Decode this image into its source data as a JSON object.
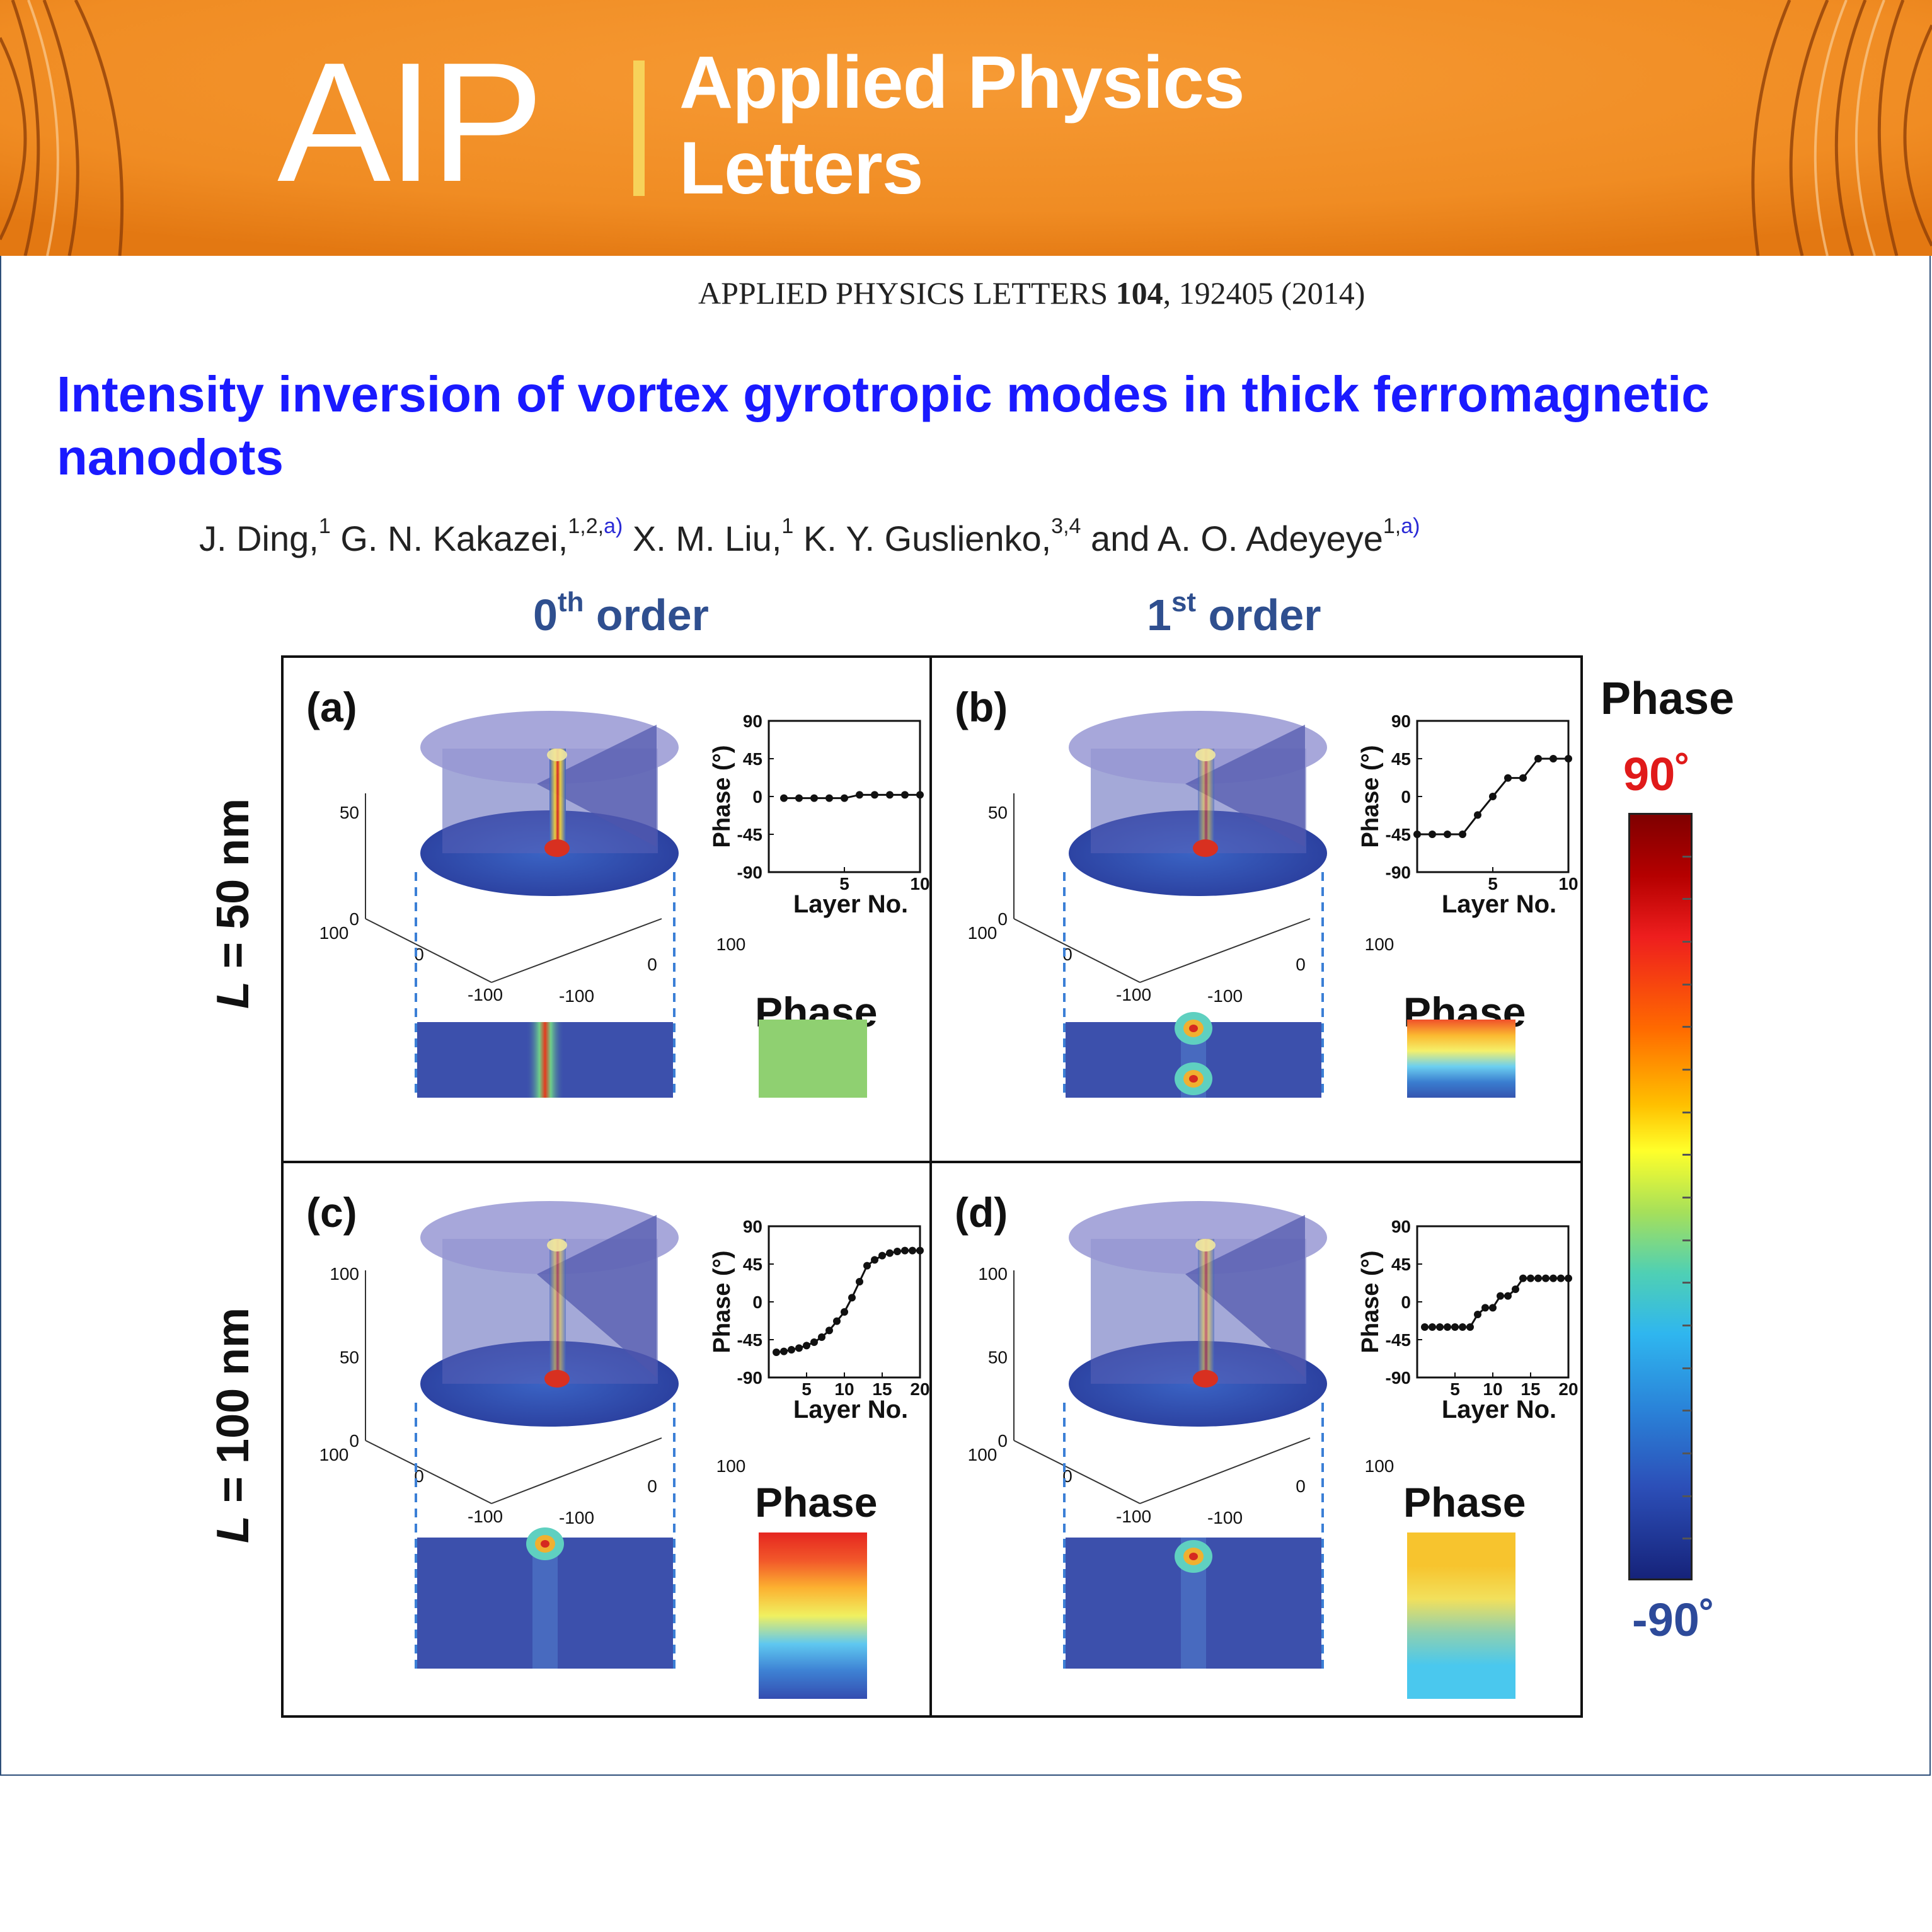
{
  "banner": {
    "logo": "AIP",
    "title_line1": "Applied Physics",
    "title_line2": "Letters",
    "background_color": "#f08c23"
  },
  "citation": {
    "journal": "APPLIED PHYSICS LETTERS",
    "volume": "104",
    "rest": ", 192405 (2014)"
  },
  "paper": {
    "title": "Intensity inversion of vortex gyrotropic modes in thick ferromagnetic nanodots",
    "authors": [
      {
        "name": "J. Ding,",
        "sup": "1",
        "aff": ""
      },
      {
        "name": " G. N. Kakazei,",
        "sup": "1,2,",
        "aff": "a)"
      },
      {
        "name": " X. M. Liu,",
        "sup": "1",
        "aff": ""
      },
      {
        "name": " K. Y. Guslienko,",
        "sup": "3,4",
        "aff": ""
      },
      {
        "name": " and A. O. Adeyeye",
        "sup": "1,",
        "aff": "a)"
      }
    ]
  },
  "figure": {
    "columns": [
      {
        "main": "0",
        "sup": "th",
        "rest": " order"
      },
      {
        "main": "1",
        "sup": "st",
        "rest": " order"
      }
    ],
    "rows": [
      {
        "var": "L",
        "rest": " = 50 nm"
      },
      {
        "var": "L",
        "rest": " = 100 nm"
      }
    ],
    "phase_word": "Phase",
    "inset_ylabel": "Phase (°)",
    "inset_xlabel": "Layer No.",
    "panels": [
      {
        "letter": "(a)",
        "z_ticks": [
          "50",
          "0"
        ],
        "xy_ticks": [
          "100",
          "0",
          "-100",
          "-100",
          "0",
          "100"
        ],
        "swatch_colors": [
          "#8fd071"
        ],
        "chart_data": {
          "type": "line",
          "xlim": [
            0,
            10
          ],
          "ylim": [
            -90,
            90
          ],
          "x_ticks": [
            "5",
            "10"
          ],
          "y_ticks": [
            "90",
            "45",
            "0",
            "-45",
            "-90"
          ],
          "x": [
            1,
            2,
            3,
            4,
            5,
            6,
            7,
            8,
            9,
            10
          ],
          "y": [
            -2,
            -2,
            -2,
            -2,
            -2,
            2,
            2,
            2,
            2,
            2
          ]
        }
      },
      {
        "letter": "(b)",
        "z_ticks": [
          "50",
          "0"
        ],
        "xy_ticks": [
          "100",
          "0",
          "-100",
          "-100",
          "0",
          "100"
        ],
        "swatch_colors": [
          "#f0502a",
          "#fbb830",
          "#f5f06a",
          "#6ccff0",
          "#3a7ed0",
          "#3555b0"
        ],
        "chart_data": {
          "type": "line",
          "xlim": [
            0,
            10
          ],
          "ylim": [
            -90,
            90
          ],
          "x_ticks": [
            "5",
            "10"
          ],
          "y_ticks": [
            "90",
            "45",
            "0",
            "-45",
            "-90"
          ],
          "x": [
            0,
            1,
            2,
            3,
            4,
            5,
            6,
            7,
            8,
            9,
            10
          ],
          "y": [
            -45,
            -45,
            -45,
            -45,
            -22,
            0,
            22,
            22,
            45,
            45,
            45
          ]
        }
      },
      {
        "letter": "(c)",
        "z_ticks": [
          "100",
          "50",
          "0"
        ],
        "xy_ticks": [
          "100",
          "0",
          "-100",
          "-100",
          "0",
          "100"
        ],
        "swatch_colors": [
          "#e52620",
          "#f2582a",
          "#fcb030",
          "#f0f060",
          "#5fc8f0",
          "#3e82d4",
          "#344db0"
        ],
        "chart_data": {
          "type": "line",
          "xlim": [
            0,
            20
          ],
          "ylim": [
            -90,
            90
          ],
          "x_ticks": [
            "5",
            "10",
            "15",
            "20"
          ],
          "y_ticks": [
            "90",
            "45",
            "0",
            "-45",
            "-90"
          ],
          "x": [
            1,
            2,
            3,
            4,
            5,
            6,
            7,
            8,
            9,
            10,
            11,
            12,
            13,
            14,
            15,
            16,
            17,
            18,
            19,
            20
          ],
          "y": [
            -60,
            -59,
            -57,
            -55,
            -52,
            -48,
            -42,
            -34,
            -23,
            -12,
            5,
            24,
            43,
            50,
            55,
            58,
            60,
            61,
            61,
            61
          ]
        }
      },
      {
        "letter": "(d)",
        "z_ticks": [
          "100",
          "50",
          "0"
        ],
        "xy_ticks": [
          "100",
          "0",
          "-100",
          "-100",
          "0",
          "100"
        ],
        "swatch_colors": [
          "#f7c42e",
          "#f7c42e",
          "#f2e05c",
          "#8ed0b0",
          "#4ac8ee",
          "#4ac8ee"
        ],
        "chart_data": {
          "type": "line",
          "xlim": [
            0,
            20
          ],
          "ylim": [
            -90,
            90
          ],
          "x_ticks": [
            "5",
            "10",
            "15",
            "20"
          ],
          "y_ticks": [
            "90",
            "45",
            "0",
            "-45",
            "-90"
          ],
          "x": [
            1,
            2,
            3,
            4,
            5,
            6,
            7,
            8,
            9,
            10,
            11,
            12,
            13,
            14,
            15,
            16,
            17,
            18,
            19,
            20
          ],
          "y": [
            -30,
            -30,
            -30,
            -30,
            -30,
            -30,
            -30,
            -15,
            -7,
            -7,
            7,
            7,
            15,
            28,
            28,
            28,
            28,
            28,
            28,
            28
          ]
        }
      }
    ],
    "colorbar": {
      "title": "Phase",
      "max_label": "90˚",
      "min_label": "-90˚",
      "max_color": "#e01a1a",
      "min_color": "#2d4a9a"
    }
  }
}
